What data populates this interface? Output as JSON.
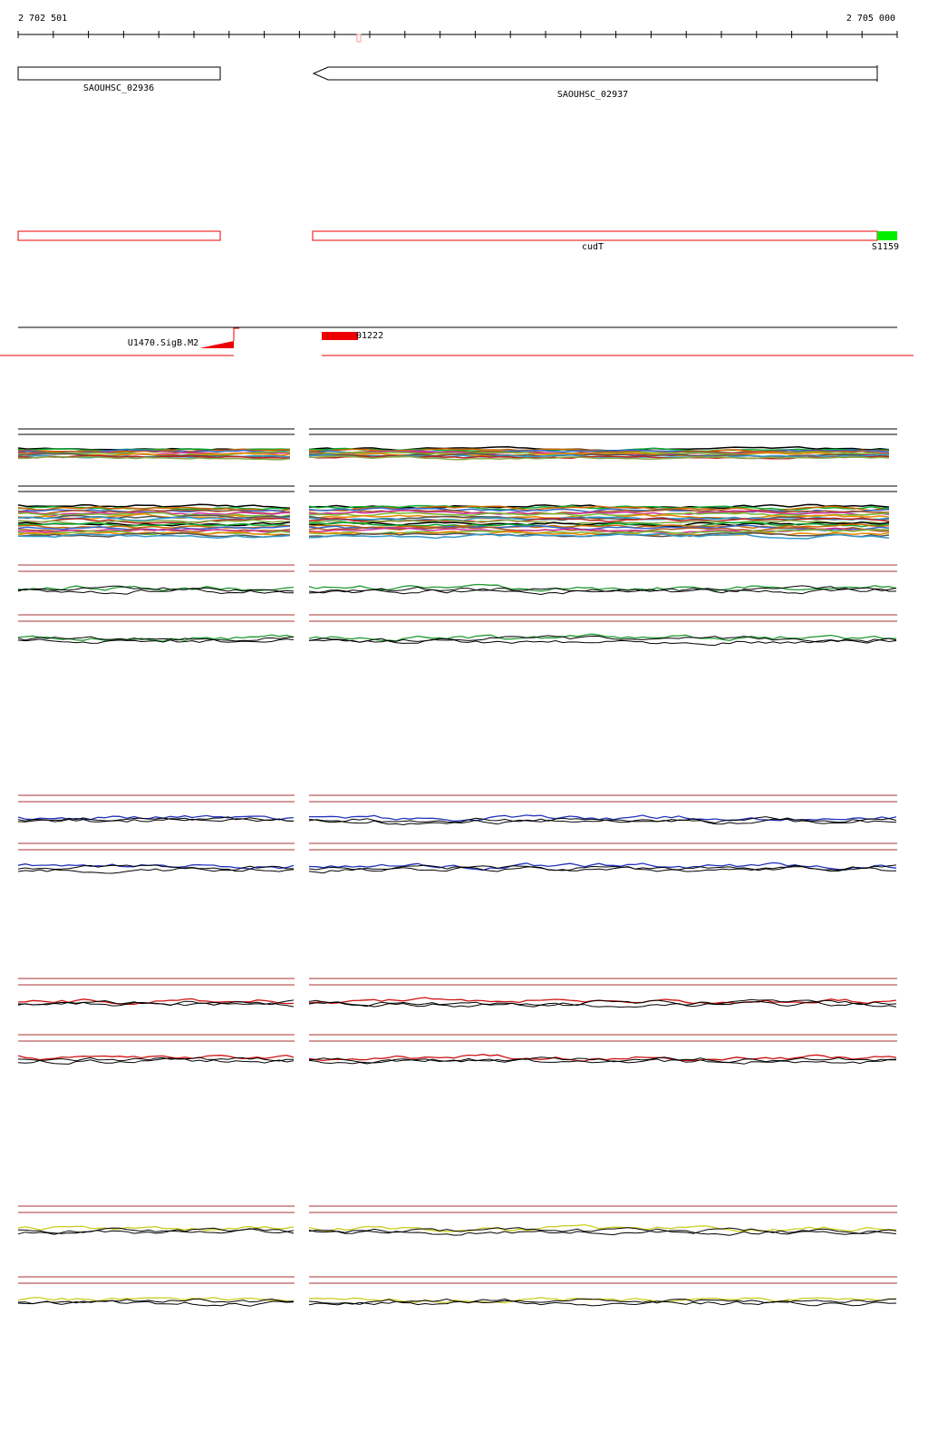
{
  "ruler": {
    "start": "2 702 501",
    "end": "2 705 000"
  },
  "genes": [
    {
      "label": "SAOUHSC_02936"
    },
    {
      "label": "SAOUHSC_02937"
    }
  ],
  "features": [
    {
      "label": "cudT"
    },
    {
      "label": "S1159"
    }
  ],
  "regulators": [
    {
      "label": "U1470.SigB.M2"
    },
    {
      "label": "01222"
    }
  ]
}
